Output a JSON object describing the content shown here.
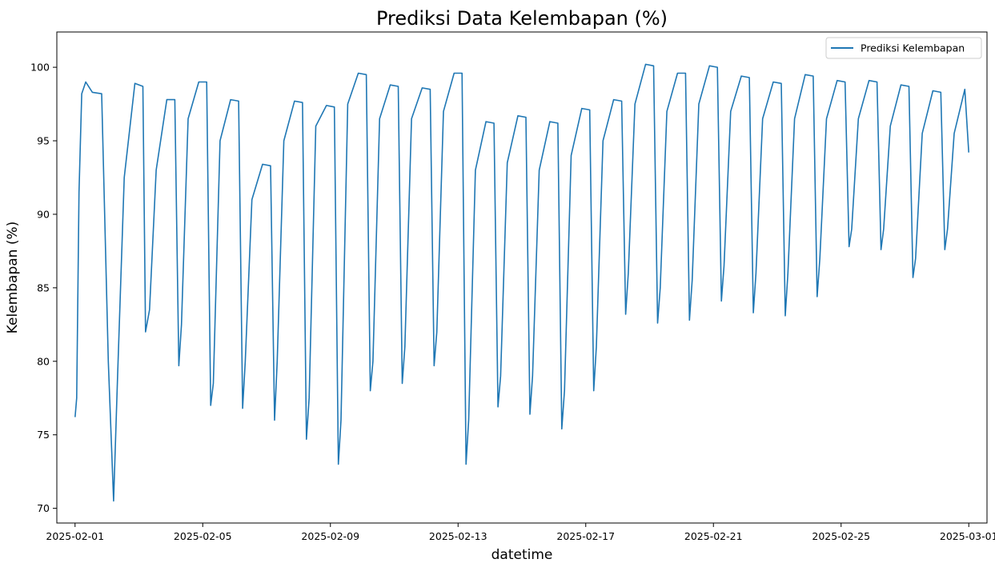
{
  "chart_data": {
    "type": "line",
    "title": "Prediksi Data Kelembapan (%)",
    "xlabel": "datetime",
    "ylabel": "Kelembapan (%)",
    "x_ticks": [
      "2025-02-01",
      "2025-02-05",
      "2025-02-09",
      "2025-02-13",
      "2025-02-17",
      "2025-02-21",
      "2025-02-25",
      "2025-03-01"
    ],
    "y_ticks": [
      70,
      75,
      80,
      85,
      90,
      95,
      100
    ],
    "xlim": [
      "2025-01-31T10:18",
      "2025-03-01T13:42"
    ],
    "ylim": [
      69.0,
      102.4
    ],
    "grid": false,
    "legend_position": "top-right",
    "series": [
      {
        "name": "Prediksi Kelembapan",
        "color": "#1f77b4",
        "x": [
          "2025-02-01T00:00",
          "2025-02-01T01:12",
          "2025-02-01T03:00",
          "2025-02-01T05:00",
          "2025-02-01T08:00",
          "2025-02-01T13:00",
          "2025-02-01T20:00",
          "2025-02-02T01:00",
          "2025-02-02T05:00",
          "2025-02-02T08:00",
          "2025-02-02T13:00",
          "2025-02-02T21:00",
          "2025-02-03T03:00",
          "2025-02-03T05:00",
          "2025-02-03T08:00",
          "2025-02-03T13:00",
          "2025-02-03T21:00",
          "2025-02-04T03:00",
          "2025-02-04T06:00",
          "2025-02-04T08:00",
          "2025-02-04T13:00",
          "2025-02-04T21:00",
          "2025-02-05T03:00",
          "2025-02-05T06:00",
          "2025-02-05T08:00",
          "2025-02-05T13:00",
          "2025-02-05T21:00",
          "2025-02-06T03:00",
          "2025-02-06T06:00",
          "2025-02-06T08:00",
          "2025-02-06T13:00",
          "2025-02-06T21:00",
          "2025-02-07T03:00",
          "2025-02-07T06:00",
          "2025-02-07T08:00",
          "2025-02-07T13:00",
          "2025-02-07T21:00",
          "2025-02-08T03:00",
          "2025-02-08T06:00",
          "2025-02-08T08:00",
          "2025-02-08T13:00",
          "2025-02-08T21:00",
          "2025-02-09T03:00",
          "2025-02-09T06:00",
          "2025-02-09T08:00",
          "2025-02-09T13:00",
          "2025-02-09T21:00",
          "2025-02-10T03:00",
          "2025-02-10T06:00",
          "2025-02-10T08:00",
          "2025-02-10T13:00",
          "2025-02-10T21:00",
          "2025-02-11T03:00",
          "2025-02-11T06:00",
          "2025-02-11T08:00",
          "2025-02-11T13:00",
          "2025-02-11T21:00",
          "2025-02-12T03:00",
          "2025-02-12T06:00",
          "2025-02-12T08:00",
          "2025-02-12T13:00",
          "2025-02-12T21:00",
          "2025-02-13T03:00",
          "2025-02-13T06:00",
          "2025-02-13T08:00",
          "2025-02-13T13:00",
          "2025-02-13T21:00",
          "2025-02-14T03:00",
          "2025-02-14T06:00",
          "2025-02-14T08:00",
          "2025-02-14T13:00",
          "2025-02-14T21:00",
          "2025-02-15T03:00",
          "2025-02-15T06:00",
          "2025-02-15T08:00",
          "2025-02-15T13:00",
          "2025-02-15T21:00",
          "2025-02-16T03:00",
          "2025-02-16T06:00",
          "2025-02-16T08:00",
          "2025-02-16T13:00",
          "2025-02-16T21:00",
          "2025-02-17T03:00",
          "2025-02-17T06:00",
          "2025-02-17T08:00",
          "2025-02-17T13:00",
          "2025-02-17T21:00",
          "2025-02-18T03:00",
          "2025-02-18T06:00",
          "2025-02-18T08:00",
          "2025-02-18T13:00",
          "2025-02-18T21:00",
          "2025-02-19T03:00",
          "2025-02-19T06:00",
          "2025-02-19T08:00",
          "2025-02-19T13:00",
          "2025-02-19T21:00",
          "2025-02-20T03:00",
          "2025-02-20T06:00",
          "2025-02-20T08:00",
          "2025-02-20T13:00",
          "2025-02-20T21:00",
          "2025-02-21T03:00",
          "2025-02-21T06:00",
          "2025-02-21T08:00",
          "2025-02-21T13:00",
          "2025-02-21T21:00",
          "2025-02-22T03:00",
          "2025-02-22T06:00",
          "2025-02-22T08:00",
          "2025-02-22T13:00",
          "2025-02-22T21:00",
          "2025-02-23T03:00",
          "2025-02-23T06:00",
          "2025-02-23T08:00",
          "2025-02-23T13:00",
          "2025-02-23T21:00",
          "2025-02-24T03:00",
          "2025-02-24T06:00",
          "2025-02-24T08:00",
          "2025-02-24T13:00",
          "2025-02-24T21:00",
          "2025-02-25T03:00",
          "2025-02-25T06:00",
          "2025-02-25T08:00",
          "2025-02-25T13:00",
          "2025-02-25T21:00",
          "2025-02-26T03:00",
          "2025-02-26T06:00",
          "2025-02-26T08:00",
          "2025-02-26T13:00",
          "2025-02-26T21:00",
          "2025-02-27T03:00",
          "2025-02-27T06:00",
          "2025-02-27T08:00",
          "2025-02-27T13:00",
          "2025-02-27T21:00",
          "2025-02-28T03:00",
          "2025-02-28T06:00",
          "2025-02-28T08:00",
          "2025-02-28T13:00",
          "2025-02-28T21:00",
          "2025-03-01T00:00"
        ],
        "y": [
          76.2,
          77.5,
          91.5,
          98.2,
          99.0,
          98.3,
          98.2,
          80.0,
          70.5,
          79.0,
          92.5,
          98.9,
          98.7,
          82.0,
          83.5,
          93.0,
          97.8,
          97.8,
          79.7,
          82.5,
          96.5,
          99.0,
          99.0,
          77.0,
          78.5,
          95.0,
          97.8,
          97.7,
          76.8,
          80.0,
          91.0,
          93.4,
          93.3,
          76.0,
          80.0,
          95.0,
          97.7,
          97.6,
          74.7,
          77.5,
          96.0,
          97.4,
          97.3,
          73.0,
          76.0,
          97.5,
          99.6,
          99.5,
          78.0,
          80.0,
          96.5,
          98.8,
          98.7,
          78.5,
          81.0,
          96.5,
          98.6,
          98.5,
          79.7,
          82.0,
          97.0,
          99.6,
          99.6,
          73.0,
          76.0,
          93.0,
          96.3,
          96.2,
          76.9,
          79.0,
          93.5,
          96.7,
          96.6,
          76.4,
          79.0,
          93.0,
          96.3,
          96.2,
          75.4,
          78.0,
          94.0,
          97.2,
          97.1,
          78.0,
          81.0,
          95.0,
          97.8,
          97.7,
          83.2,
          86.0,
          97.5,
          100.2,
          100.1,
          82.6,
          85.0,
          97.0,
          99.6,
          99.6,
          82.8,
          85.5,
          97.5,
          100.1,
          100.0,
          84.1,
          86.5,
          97.0,
          99.4,
          99.3,
          83.3,
          86.0,
          96.5,
          99.0,
          98.9,
          83.1,
          86.0,
          96.5,
          99.5,
          99.4,
          84.4,
          87.0,
          96.5,
          99.1,
          99.0,
          87.8,
          89.0,
          96.5,
          99.1,
          99.0,
          87.6,
          89.0,
          96.0,
          98.8,
          98.7,
          85.7,
          87.0,
          95.5,
          98.4,
          98.3,
          87.6,
          89.0,
          95.5,
          98.5,
          94.2
        ]
      }
    ]
  }
}
